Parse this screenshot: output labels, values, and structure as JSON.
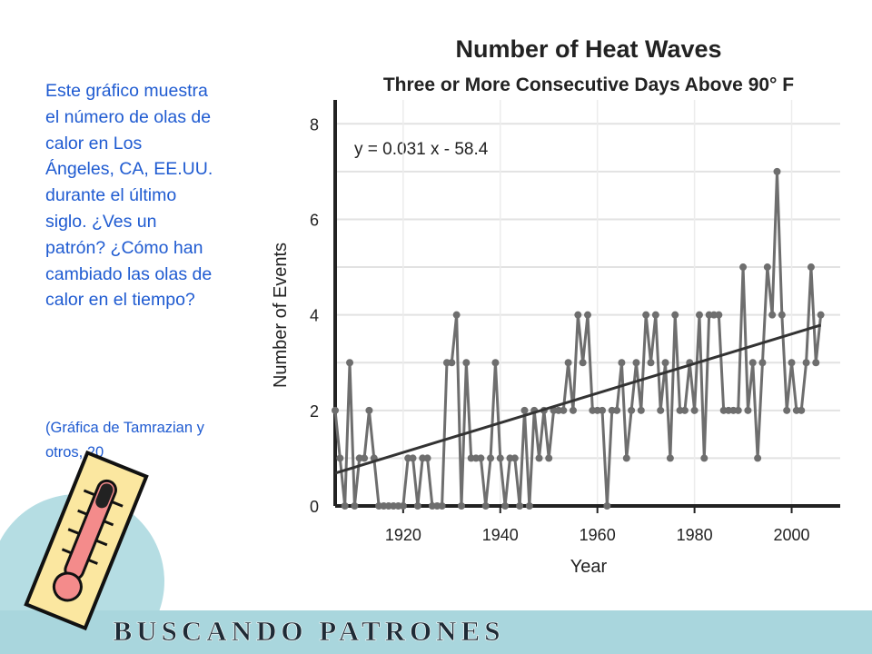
{
  "side_text": {
    "paragraph": "Este gráfico muestra el número de olas de calor en Los Ángeles, CA, EE.UU. durante el último siglo. ¿Ves un patrón? ¿Cómo han cambiado las olas de calor en el tiempo?",
    "source": "(Gráfica de Tamrazian y otros, 20"
  },
  "footer": "BUSCANDO PATRONES",
  "chart_data": {
    "type": "line",
    "title": "Number of Heat Waves",
    "subtitle": "Three or More Consecutive Days Above 90° F",
    "xlabel": "Year",
    "ylabel": "Number of Events",
    "x": [
      1906,
      1907,
      1908,
      1909,
      1910,
      1911,
      1912,
      1913,
      1914,
      1915,
      1916,
      1917,
      1918,
      1919,
      1920,
      1921,
      1922,
      1923,
      1924,
      1925,
      1926,
      1927,
      1928,
      1929,
      1930,
      1931,
      1932,
      1933,
      1934,
      1935,
      1936,
      1937,
      1938,
      1939,
      1940,
      1941,
      1942,
      1943,
      1944,
      1945,
      1946,
      1947,
      1948,
      1949,
      1950,
      1951,
      1952,
      1953,
      1954,
      1955,
      1956,
      1957,
      1958,
      1959,
      1960,
      1961,
      1962,
      1963,
      1964,
      1965,
      1966,
      1967,
      1968,
      1969,
      1970,
      1971,
      1972,
      1973,
      1974,
      1975,
      1976,
      1977,
      1978,
      1979,
      1980,
      1981,
      1982,
      1983,
      1984,
      1985,
      1986,
      1987,
      1988,
      1989,
      1990,
      1991,
      1992,
      1993,
      1994,
      1995,
      1996,
      1997,
      1998,
      1999,
      2000,
      2001,
      2002,
      2003,
      2004,
      2005,
      2006
    ],
    "series": [
      {
        "name": "Heat waves",
        "color": "#6e6e6e",
        "values": [
          2,
          1,
          0,
          3,
          0,
          1,
          1,
          2,
          1,
          0,
          0,
          0,
          0,
          0,
          0,
          1,
          1,
          0,
          1,
          1,
          0,
          0,
          0,
          3,
          3,
          4,
          0,
          3,
          1,
          1,
          1,
          0,
          1,
          3,
          1,
          0,
          1,
          1,
          0,
          2,
          0,
          2,
          1,
          2,
          1,
          2,
          2,
          2,
          3,
          2,
          4,
          3,
          4,
          2,
          2,
          2,
          0,
          2,
          2,
          3,
          1,
          2,
          3,
          2,
          4,
          3,
          4,
          2,
          3,
          1,
          4,
          2,
          2,
          3,
          2,
          4,
          1,
          4,
          4,
          4,
          2,
          2,
          2,
          2,
          5,
          2,
          3,
          1,
          3,
          5,
          4,
          7,
          4,
          2,
          3,
          2,
          2,
          3,
          5,
          3,
          4
        ]
      }
    ],
    "trend": {
      "label": "y = 0.031 x - 58.4",
      "slope": 0.031,
      "intercept": -58.4,
      "color": "#333333"
    },
    "xlim": [
      1906,
      2010
    ],
    "ylim": [
      0,
      8.5
    ],
    "xticks": [
      1920,
      1940,
      1960,
      1980,
      2000
    ],
    "yticks": [
      0,
      2,
      4,
      6,
      8
    ],
    "y_minor_grid": [
      1,
      3,
      5,
      7
    ],
    "grid": true
  }
}
